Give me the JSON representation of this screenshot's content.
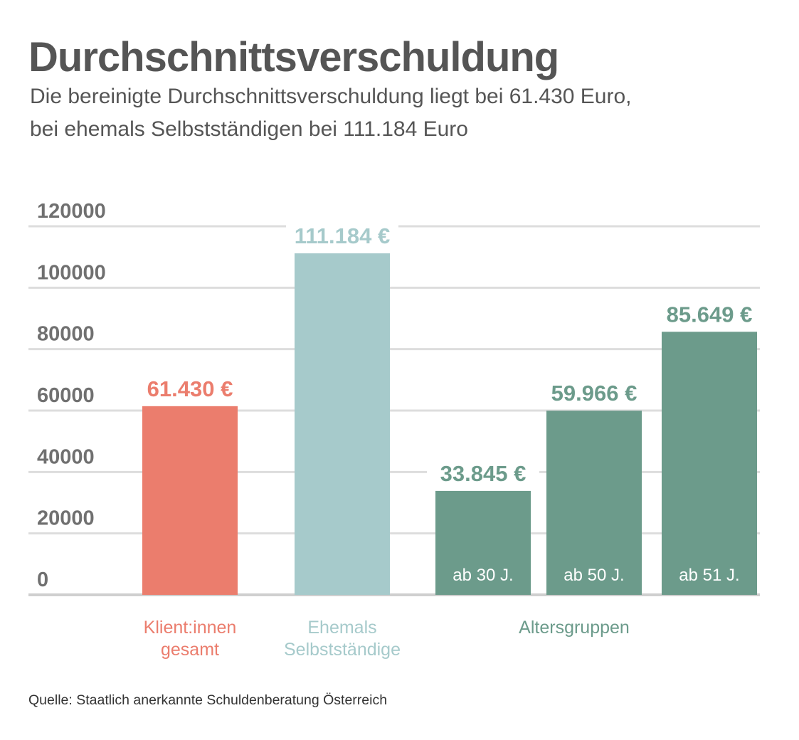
{
  "title": "Durchschnittsverschuldung",
  "subtitle": {
    "line1": "Die bereinigte Durchschnittsverschuldung liegt bei 61.430 Euro,",
    "line2": "bei ehemals Selbstständigen bei 111.184 Euro"
  },
  "source": "Quelle: Staatlich anerkannte Schuldenberatung Österreich",
  "colors": {
    "gesamt": "#eb7d6d",
    "selbststaendige": "#a6cacb",
    "altersgruppen": "#6c9b8b",
    "grid": "#dddddd",
    "axis_text": "#707070"
  },
  "chart_data": {
    "type": "bar",
    "ylim": [
      0,
      120000
    ],
    "yticks": [
      "0",
      "20000",
      "40000",
      "60000",
      "80000",
      "100000",
      "120000"
    ],
    "grid": true,
    "bars": [
      {
        "label": "",
        "value": 61430,
        "value_label": "61.430 €",
        "color_key": "gesamt"
      },
      {
        "label": "",
        "value": 111184,
        "value_label": "111.184 €",
        "color_key": "selbststaendige"
      },
      {
        "label": "ab 30 J.",
        "value": 33845,
        "value_label": "33.845 €",
        "color_key": "altersgruppen"
      },
      {
        "label": "ab 50 J.",
        "value": 59966,
        "value_label": "59.966 €",
        "color_key": "altersgruppen"
      },
      {
        "label": "ab 51 J.",
        "value": 85649,
        "value_label": "85.649 €",
        "color_key": "altersgruppen"
      }
    ],
    "groups": [
      {
        "lines": [
          "Klient:innen",
          "gesamt"
        ],
        "color_key": "gesamt"
      },
      {
        "lines": [
          "Ehemals",
          "Selbstständige"
        ],
        "color_key": "selbststaendige"
      },
      {
        "lines": [
          "Altersgruppen"
        ],
        "color_key": "altersgruppen"
      }
    ]
  }
}
